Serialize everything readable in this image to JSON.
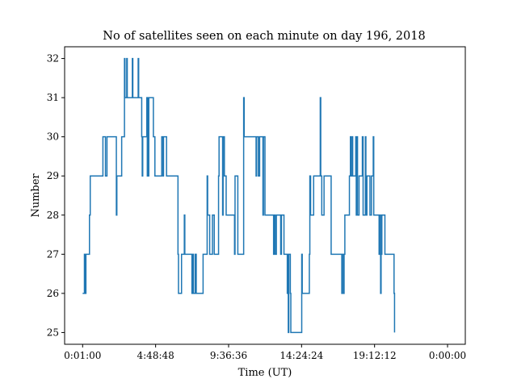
{
  "chart_data": {
    "type": "line",
    "title": "No of satellites seen on each minute on day 196, 2018",
    "xlabel": "Time (UT)",
    "ylabel": "Number",
    "xlim_minutes": [
      -70,
      1510
    ],
    "ylim": [
      24.7,
      32.3
    ],
    "x_ticks": [
      {
        "minute": 1,
        "label": "0:01:00"
      },
      {
        "minute": 288.8,
        "label": "4:48:48"
      },
      {
        "minute": 576.6,
        "label": "9:36:36"
      },
      {
        "minute": 864.4,
        "label": "14:24:24"
      },
      {
        "minute": 1152.2,
        "label": "19:12:12"
      },
      {
        "minute": 1440,
        "label": "0:00:00"
      }
    ],
    "y_ticks": [
      25,
      26,
      27,
      28,
      29,
      30,
      31,
      32
    ],
    "grid": false,
    "line_color": "#1f77b4",
    "series": [
      {
        "values": [
          [
            1,
            26
          ],
          [
            8,
            26
          ],
          [
            8,
            27
          ],
          [
            12,
            27
          ],
          [
            12,
            26
          ],
          [
            14,
            26
          ],
          [
            14,
            27
          ],
          [
            28,
            27
          ],
          [
            28,
            28
          ],
          [
            31,
            28
          ],
          [
            31,
            29
          ],
          [
            81,
            29
          ],
          [
            81,
            30
          ],
          [
            91,
            30
          ],
          [
            91,
            29
          ],
          [
            97,
            29
          ],
          [
            97,
            30
          ],
          [
            134,
            30
          ],
          [
            134,
            28
          ],
          [
            136,
            28
          ],
          [
            136,
            29
          ],
          [
            155,
            29
          ],
          [
            155,
            30
          ],
          [
            166,
            30
          ],
          [
            166,
            32
          ],
          [
            168,
            32
          ],
          [
            168,
            31
          ],
          [
            175,
            31
          ],
          [
            175,
            32
          ],
          [
            177,
            32
          ],
          [
            177,
            31
          ],
          [
            197,
            31
          ],
          [
            197,
            32
          ],
          [
            199,
            32
          ],
          [
            199,
            31
          ],
          [
            220,
            31
          ],
          [
            220,
            32
          ],
          [
            222,
            32
          ],
          [
            222,
            31
          ],
          [
            234,
            31
          ],
          [
            234,
            30
          ],
          [
            236,
            30
          ],
          [
            236,
            29
          ],
          [
            238,
            29
          ],
          [
            238,
            30
          ],
          [
            254,
            30
          ],
          [
            254,
            31
          ],
          [
            256,
            31
          ],
          [
            256,
            29
          ],
          [
            258,
            29
          ],
          [
            258,
            31
          ],
          [
            260,
            31
          ],
          [
            260,
            29
          ],
          [
            262,
            29
          ],
          [
            262,
            31
          ],
          [
            280,
            31
          ],
          [
            280,
            30
          ],
          [
            286,
            30
          ],
          [
            286,
            29
          ],
          [
            313,
            29
          ],
          [
            313,
            30
          ],
          [
            318,
            30
          ],
          [
            318,
            29
          ],
          [
            320,
            29
          ],
          [
            320,
            30
          ],
          [
            332,
            30
          ],
          [
            332,
            29
          ],
          [
            377,
            29
          ],
          [
            377,
            27
          ],
          [
            379,
            27
          ],
          [
            379,
            26
          ],
          [
            391,
            26
          ],
          [
            391,
            27
          ],
          [
            402,
            27
          ],
          [
            402,
            28
          ],
          [
            404,
            28
          ],
          [
            404,
            27
          ],
          [
            432,
            27
          ],
          [
            432,
            26
          ],
          [
            434,
            26
          ],
          [
            434,
            27
          ],
          [
            438,
            27
          ],
          [
            438,
            26
          ],
          [
            445,
            26
          ],
          [
            445,
            27
          ],
          [
            449,
            27
          ],
          [
            449,
            26
          ],
          [
            476,
            26
          ],
          [
            476,
            27
          ],
          [
            492,
            27
          ],
          [
            492,
            29
          ],
          [
            494,
            29
          ],
          [
            494,
            28
          ],
          [
            502,
            28
          ],
          [
            502,
            27
          ],
          [
            513,
            27
          ],
          [
            513,
            28
          ],
          [
            520,
            28
          ],
          [
            520,
            27
          ],
          [
            537,
            27
          ],
          [
            537,
            29
          ],
          [
            539,
            29
          ],
          [
            539,
            30
          ],
          [
            553,
            30
          ],
          [
            553,
            28
          ],
          [
            555,
            28
          ],
          [
            555,
            30
          ],
          [
            560,
            30
          ],
          [
            560,
            29
          ],
          [
            567,
            29
          ],
          [
            567,
            28
          ],
          [
            600,
            28
          ],
          [
            600,
            27
          ],
          [
            602,
            27
          ],
          [
            602,
            29
          ],
          [
            613,
            29
          ],
          [
            613,
            27
          ],
          [
            636,
            27
          ],
          [
            636,
            31
          ],
          [
            638,
            31
          ],
          [
            638,
            30
          ],
          [
            685,
            30
          ],
          [
            685,
            29
          ],
          [
            687,
            29
          ],
          [
            687,
            30
          ],
          [
            694,
            30
          ],
          [
            694,
            29
          ],
          [
            699,
            29
          ],
          [
            699,
            30
          ],
          [
            712,
            30
          ],
          [
            712,
            28
          ],
          [
            714,
            28
          ],
          [
            714,
            30
          ],
          [
            720,
            30
          ],
          [
            720,
            28
          ],
          [
            754,
            28
          ],
          [
            754,
            27
          ],
          [
            756,
            27
          ],
          [
            756,
            28
          ],
          [
            760,
            28
          ],
          [
            760,
            27
          ],
          [
            765,
            27
          ],
          [
            765,
            28
          ],
          [
            782,
            28
          ],
          [
            782,
            27
          ],
          [
            785,
            27
          ],
          [
            785,
            28
          ],
          [
            795,
            28
          ],
          [
            795,
            27
          ],
          [
            808,
            27
          ],
          [
            808,
            26
          ],
          [
            810,
            26
          ],
          [
            810,
            27
          ],
          [
            812,
            27
          ],
          [
            812,
            25
          ],
          [
            814,
            25
          ],
          [
            814,
            27
          ],
          [
            820,
            27
          ],
          [
            820,
            26
          ],
          [
            822,
            26
          ],
          [
            822,
            25
          ],
          [
            865,
            25
          ],
          [
            865,
            27
          ],
          [
            867,
            27
          ],
          [
            867,
            26
          ],
          [
            895,
            26
          ],
          [
            895,
            27
          ],
          [
            897,
            27
          ],
          [
            897,
            29
          ],
          [
            900,
            29
          ],
          [
            900,
            28
          ],
          [
            912,
            28
          ],
          [
            912,
            29
          ],
          [
            938,
            29
          ],
          [
            938,
            31
          ],
          [
            940,
            31
          ],
          [
            940,
            29
          ],
          [
            944,
            29
          ],
          [
            944,
            28
          ],
          [
            953,
            28
          ],
          [
            953,
            29
          ],
          [
            981,
            29
          ],
          [
            981,
            27
          ],
          [
            1023,
            27
          ],
          [
            1023,
            26
          ],
          [
            1025,
            26
          ],
          [
            1025,
            27
          ],
          [
            1030,
            27
          ],
          [
            1030,
            26
          ],
          [
            1032,
            26
          ],
          [
            1032,
            27
          ],
          [
            1035,
            27
          ],
          [
            1035,
            28
          ],
          [
            1053,
            28
          ],
          [
            1053,
            29
          ],
          [
            1057,
            29
          ],
          [
            1057,
            30
          ],
          [
            1059,
            30
          ],
          [
            1059,
            29
          ],
          [
            1064,
            29
          ],
          [
            1064,
            30
          ],
          [
            1066,
            30
          ],
          [
            1066,
            29
          ],
          [
            1078,
            29
          ],
          [
            1078,
            30
          ],
          [
            1080,
            30
          ],
          [
            1080,
            28
          ],
          [
            1082,
            28
          ],
          [
            1082,
            30
          ],
          [
            1085,
            30
          ],
          [
            1085,
            28
          ],
          [
            1091,
            28
          ],
          [
            1091,
            29
          ],
          [
            1104,
            29
          ],
          [
            1104,
            30
          ],
          [
            1107,
            30
          ],
          [
            1107,
            28
          ],
          [
            1116,
            28
          ],
          [
            1116,
            30
          ],
          [
            1118,
            30
          ],
          [
            1118,
            28
          ],
          [
            1122,
            28
          ],
          [
            1122,
            29
          ],
          [
            1134,
            29
          ],
          [
            1134,
            28
          ],
          [
            1140,
            28
          ],
          [
            1140,
            29
          ],
          [
            1147,
            29
          ],
          [
            1147,
            30
          ],
          [
            1149,
            30
          ],
          [
            1149,
            28
          ],
          [
            1170,
            28
          ],
          [
            1170,
            27
          ],
          [
            1172,
            27
          ],
          [
            1172,
            28
          ],
          [
            1176,
            28
          ],
          [
            1176,
            26
          ],
          [
            1178,
            26
          ],
          [
            1178,
            27
          ],
          [
            1181,
            27
          ],
          [
            1181,
            28
          ],
          [
            1193,
            28
          ],
          [
            1193,
            27
          ],
          [
            1229,
            27
          ],
          [
            1229,
            26
          ],
          [
            1231,
            26
          ],
          [
            1231,
            25
          ]
        ]
      }
    ]
  }
}
